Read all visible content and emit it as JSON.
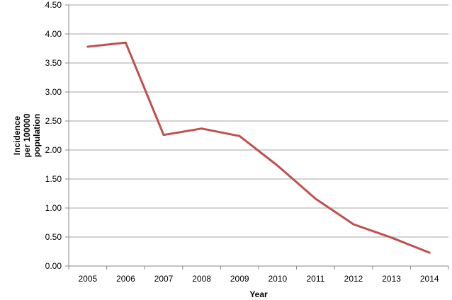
{
  "chart_data": {
    "type": "line",
    "title": "",
    "xlabel": "Year",
    "ylabel_lines": [
      "Incidence",
      "per 100000",
      "population"
    ],
    "categories": [
      "2005",
      "2006",
      "2007",
      "2008",
      "2009",
      "2010",
      "2011",
      "2012",
      "2013",
      "2014"
    ],
    "series": [
      {
        "values": [
          3.78,
          3.85,
          2.26,
          2.37,
          2.24,
          1.73,
          1.16,
          0.72,
          0.49,
          0.23
        ],
        "color": "#c0504d"
      }
    ],
    "ylim": [
      0,
      4.5
    ],
    "yticks": [
      "0.00",
      "0.50",
      "1.00",
      "1.50",
      "2.00",
      "2.50",
      "3.00",
      "3.50",
      "4.00",
      "4.50"
    ],
    "grid": true,
    "legend": "none"
  }
}
